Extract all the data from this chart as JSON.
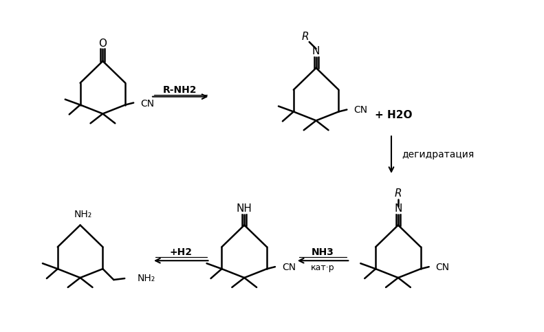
{
  "bg_color": "#ffffff",
  "line_color": "#000000",
  "figsize": [
    7.91,
    4.83
  ],
  "dpi": 100,
  "arrow1_label": "R-NH2",
  "arrow2_label": "дегидратация",
  "arrow3_label_top": "NH3",
  "arrow3_label_bot": "кат·р",
  "arrow4_label": "+H2",
  "plus_h2o": "+ H2O",
  "mol1_O": "O",
  "mol1_cn": "CN",
  "mol2_cn": "CN",
  "mol3_cn": "CN",
  "mol4_inh": "NH",
  "mol4_cn": "CN",
  "mol5_nh2_top": "NH₂",
  "mol5_nh2_bot": "NH₂"
}
